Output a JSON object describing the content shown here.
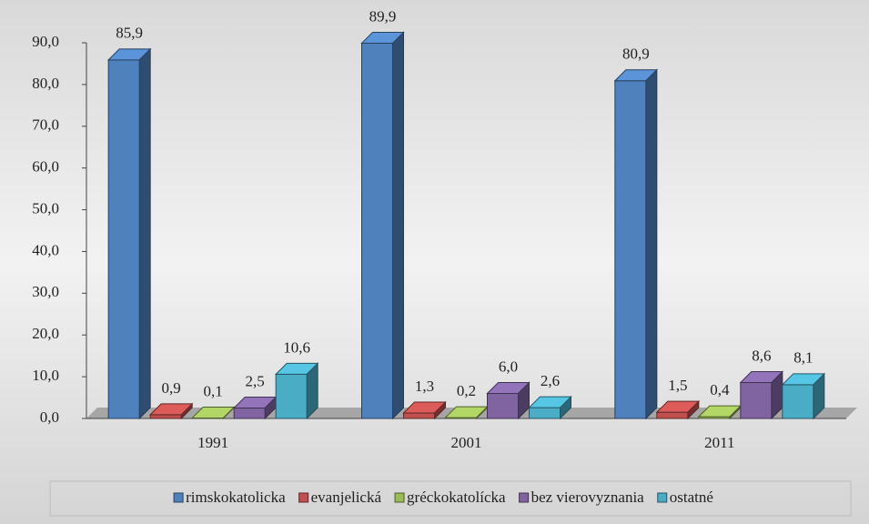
{
  "chart_data": {
    "type": "bar3d",
    "categories": [
      "1991",
      "2001",
      "2011"
    ],
    "series": [
      {
        "name": "rimskokatolicka",
        "color": "#4f81bd",
        "values": [
          85.9,
          89.9,
          80.9
        ],
        "value_labels": [
          "85,9",
          "89,9",
          "80,9"
        ]
      },
      {
        "name": "evanjelická",
        "color": "#c0504d",
        "values": [
          0.9,
          1.3,
          1.5
        ],
        "value_labels": [
          "0,9",
          "1,3",
          "1,5"
        ]
      },
      {
        "name": "gréckokatolícka",
        "color": "#9bbb59",
        "values": [
          0.1,
          0.2,
          0.4
        ],
        "value_labels": [
          "0,1",
          "0,2",
          "0,4"
        ]
      },
      {
        "name": "bez vierovyznania",
        "color": "#8064a2",
        "values": [
          2.5,
          6.0,
          8.6
        ],
        "value_labels": [
          "2,5",
          "6,0",
          "8,6"
        ]
      },
      {
        "name": "ostatné",
        "color": "#4bacc6",
        "values": [
          10.6,
          2.6,
          8.1
        ],
        "value_labels": [
          "10,6",
          "2,6",
          "8,1"
        ]
      }
    ],
    "ylim": [
      0,
      90
    ],
    "yticks": [
      {
        "value": 0,
        "label": "0,0"
      },
      {
        "value": 10,
        "label": "10,0"
      },
      {
        "value": 20,
        "label": "20,0"
      },
      {
        "value": 30,
        "label": "30,0"
      },
      {
        "value": 40,
        "label": "40,0"
      },
      {
        "value": 50,
        "label": "50,0"
      },
      {
        "value": 60,
        "label": "60,0"
      },
      {
        "value": 70,
        "label": "70,0"
      },
      {
        "value": 80,
        "label": "80,0"
      },
      {
        "value": 90,
        "label": "90,0"
      }
    ],
    "legend": "bottom"
  }
}
